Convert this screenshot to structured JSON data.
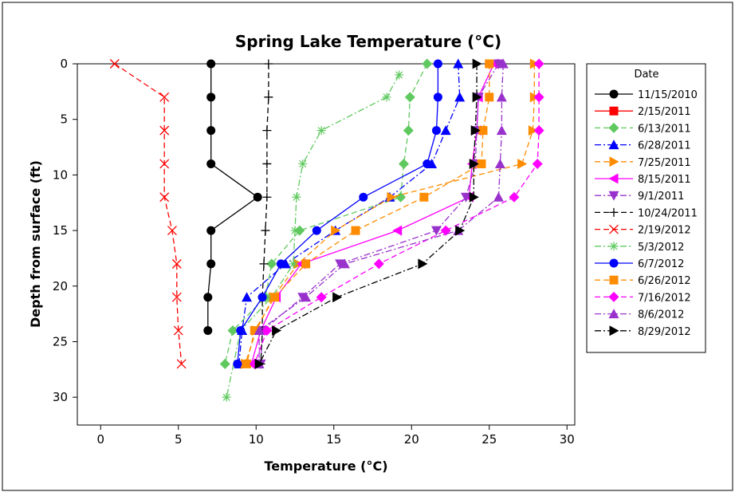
{
  "chart_data": {
    "type": "scatter",
    "title": "Spring Lake Temperature (°C)",
    "xlabel": "Temperature (°C)",
    "ylabel": "Depth from surface (ft)",
    "xlim": [
      -1.5,
      30.5
    ],
    "ylim": [
      0,
      32.5
    ],
    "y_inverted": true,
    "x_ticks": [
      0,
      5,
      10,
      15,
      20,
      25,
      30
    ],
    "y_ticks": [
      0,
      5,
      10,
      15,
      20,
      25,
      30
    ],
    "grid": false,
    "legend_title": "Date",
    "legend_placement": "right",
    "series": [
      {
        "name": "11/15/2010",
        "color": "#000000",
        "dash": "solid",
        "marker": "circle",
        "points": [
          [
            7.1,
            0
          ],
          [
            7.1,
            3
          ],
          [
            7.1,
            6
          ],
          [
            7.1,
            9
          ],
          [
            10.1,
            12
          ],
          [
            7.1,
            15
          ],
          [
            7.1,
            18
          ],
          [
            6.9,
            21
          ],
          [
            6.9,
            24
          ]
        ]
      },
      {
        "name": "2/15/2011",
        "color": "#ff0000",
        "dash": "solid",
        "marker": "square",
        "points": []
      },
      {
        "name": "6/13/2011",
        "color": "#5fc95f",
        "dash": "dash",
        "marker": "diamond",
        "points": [
          [
            21.0,
            0
          ],
          [
            19.9,
            3
          ],
          [
            19.8,
            6
          ],
          [
            19.5,
            9
          ],
          [
            19.3,
            12
          ],
          [
            12.8,
            15
          ],
          [
            11.0,
            18
          ],
          [
            10.6,
            21
          ],
          [
            8.5,
            24
          ],
          [
            8.0,
            27
          ]
        ]
      },
      {
        "name": "6/28/2011",
        "color": "#0000ff",
        "dash": "dashdot",
        "marker": "triangle-up",
        "points": [
          [
            23.0,
            0
          ],
          [
            23.1,
            3
          ],
          [
            22.2,
            6
          ],
          [
            21.3,
            9
          ],
          [
            18.6,
            12
          ],
          [
            15.1,
            15
          ],
          [
            11.9,
            18
          ],
          [
            9.4,
            21
          ],
          [
            9.1,
            24
          ],
          [
            8.9,
            27
          ]
        ]
      },
      {
        "name": "7/25/2011",
        "color": "#ff8c00",
        "dash": "dash",
        "marker": "triangle-right",
        "points": [
          [
            27.9,
            0
          ],
          [
            27.9,
            3
          ],
          [
            27.8,
            6
          ],
          [
            27.1,
            9
          ],
          [
            18.7,
            12
          ],
          [
            15.1,
            15
          ],
          [
            12.7,
            18
          ],
          [
            11.1,
            21
          ],
          [
            10.0,
            24
          ],
          [
            9.3,
            27
          ]
        ]
      },
      {
        "name": "8/15/2011",
        "color": "#ff00ff",
        "dash": "solid",
        "marker": "triangle-left",
        "points": [
          [
            25.3,
            0
          ],
          [
            24.3,
            3
          ],
          [
            24.2,
            6
          ],
          [
            23.9,
            9
          ],
          [
            23.7,
            12
          ],
          [
            19.1,
            15
          ],
          [
            12.9,
            18
          ],
          [
            11.3,
            21
          ],
          [
            10.3,
            24
          ],
          [
            9.7,
            27
          ]
        ]
      },
      {
        "name": "9/1/2011",
        "color": "#9932cc",
        "dash": "dashdot",
        "marker": "triangle-down",
        "points": [
          [
            25.6,
            0
          ],
          [
            24.3,
            3
          ],
          [
            24.2,
            6
          ],
          [
            24.1,
            9
          ],
          [
            23.5,
            12
          ],
          [
            21.6,
            15
          ],
          [
            15.4,
            18
          ],
          [
            13.0,
            21
          ],
          [
            10.4,
            24
          ],
          [
            10.3,
            27
          ]
        ]
      },
      {
        "name": "10/24/2011",
        "color": "#000000",
        "dash": "dash",
        "marker": "plus",
        "points": [
          [
            10.8,
            0
          ],
          [
            10.8,
            3
          ],
          [
            10.7,
            6
          ],
          [
            10.7,
            9
          ],
          [
            10.7,
            12
          ],
          [
            10.6,
            15
          ],
          [
            10.5,
            18
          ],
          [
            10.4,
            21
          ],
          [
            10.4,
            24
          ],
          [
            10.3,
            27
          ]
        ]
      },
      {
        "name": "2/19/2012",
        "color": "#ff0000",
        "dash": "dash",
        "marker": "x",
        "points": [
          [
            0.9,
            0
          ],
          [
            4.1,
            3
          ],
          [
            4.1,
            6
          ],
          [
            4.1,
            9
          ],
          [
            4.1,
            12
          ],
          [
            4.6,
            15
          ],
          [
            4.9,
            18
          ],
          [
            4.9,
            21
          ],
          [
            5.0,
            24
          ],
          [
            5.2,
            27
          ]
        ]
      },
      {
        "name": "5/3/2012",
        "color": "#5fc95f",
        "dash": "dashdot",
        "marker": "star",
        "points": [
          [
            19.2,
            1
          ],
          [
            18.4,
            3
          ],
          [
            14.2,
            6
          ],
          [
            13.0,
            9
          ],
          [
            12.6,
            12
          ],
          [
            12.5,
            15
          ],
          [
            12.4,
            18
          ],
          [
            11.0,
            21
          ],
          [
            9.0,
            24
          ],
          [
            8.1,
            30
          ]
        ]
      },
      {
        "name": "6/7/2012",
        "color": "#0000ff",
        "dash": "solid",
        "marker": "circle",
        "points": [
          [
            21.7,
            0
          ],
          [
            21.7,
            3
          ],
          [
            21.6,
            6
          ],
          [
            21.0,
            9
          ],
          [
            16.9,
            12
          ],
          [
            13.9,
            15
          ],
          [
            11.6,
            18
          ],
          [
            10.4,
            21
          ],
          [
            9.0,
            24
          ],
          [
            8.8,
            27
          ]
        ]
      },
      {
        "name": "6/26/2012",
        "color": "#ff8c00",
        "dash": "dash",
        "marker": "square",
        "points": [
          [
            25.0,
            0
          ],
          [
            25.0,
            3
          ],
          [
            24.6,
            6
          ],
          [
            24.5,
            9
          ],
          [
            20.8,
            12
          ],
          [
            16.4,
            15
          ],
          [
            13.2,
            18
          ],
          [
            11.2,
            21
          ],
          [
            9.9,
            24
          ],
          [
            9.4,
            27
          ]
        ]
      },
      {
        "name": "7/16/2012",
        "color": "#ff00ff",
        "dash": "dash",
        "marker": "diamond",
        "points": [
          [
            28.2,
            0
          ],
          [
            28.2,
            3
          ],
          [
            28.2,
            6
          ],
          [
            28.1,
            9
          ],
          [
            26.6,
            12
          ],
          [
            22.2,
            15
          ],
          [
            17.9,
            18
          ],
          [
            14.2,
            21
          ],
          [
            10.7,
            24
          ],
          [
            9.9,
            27
          ]
        ]
      },
      {
        "name": "8/6/2012",
        "color": "#9932cc",
        "dash": "dashdot",
        "marker": "triangle-up",
        "points": [
          [
            25.9,
            0
          ],
          [
            25.8,
            3
          ],
          [
            25.8,
            6
          ],
          [
            25.7,
            9
          ],
          [
            25.6,
            12
          ],
          [
            23.0,
            15
          ],
          [
            15.7,
            18
          ],
          [
            13.2,
            21
          ],
          [
            10.2,
            24
          ],
          [
            10.2,
            27
          ]
        ]
      },
      {
        "name": "8/29/2012",
        "color": "#000000",
        "dash": "dashdot",
        "marker": "triangle-right",
        "points": [
          [
            24.2,
            0
          ],
          [
            24.2,
            3
          ],
          [
            24.1,
            6
          ],
          [
            24.0,
            9
          ],
          [
            24.0,
            12
          ],
          [
            23.1,
            15
          ],
          [
            20.7,
            18
          ],
          [
            15.2,
            21
          ],
          [
            11.3,
            24
          ],
          [
            10.2,
            27
          ]
        ]
      }
    ]
  }
}
